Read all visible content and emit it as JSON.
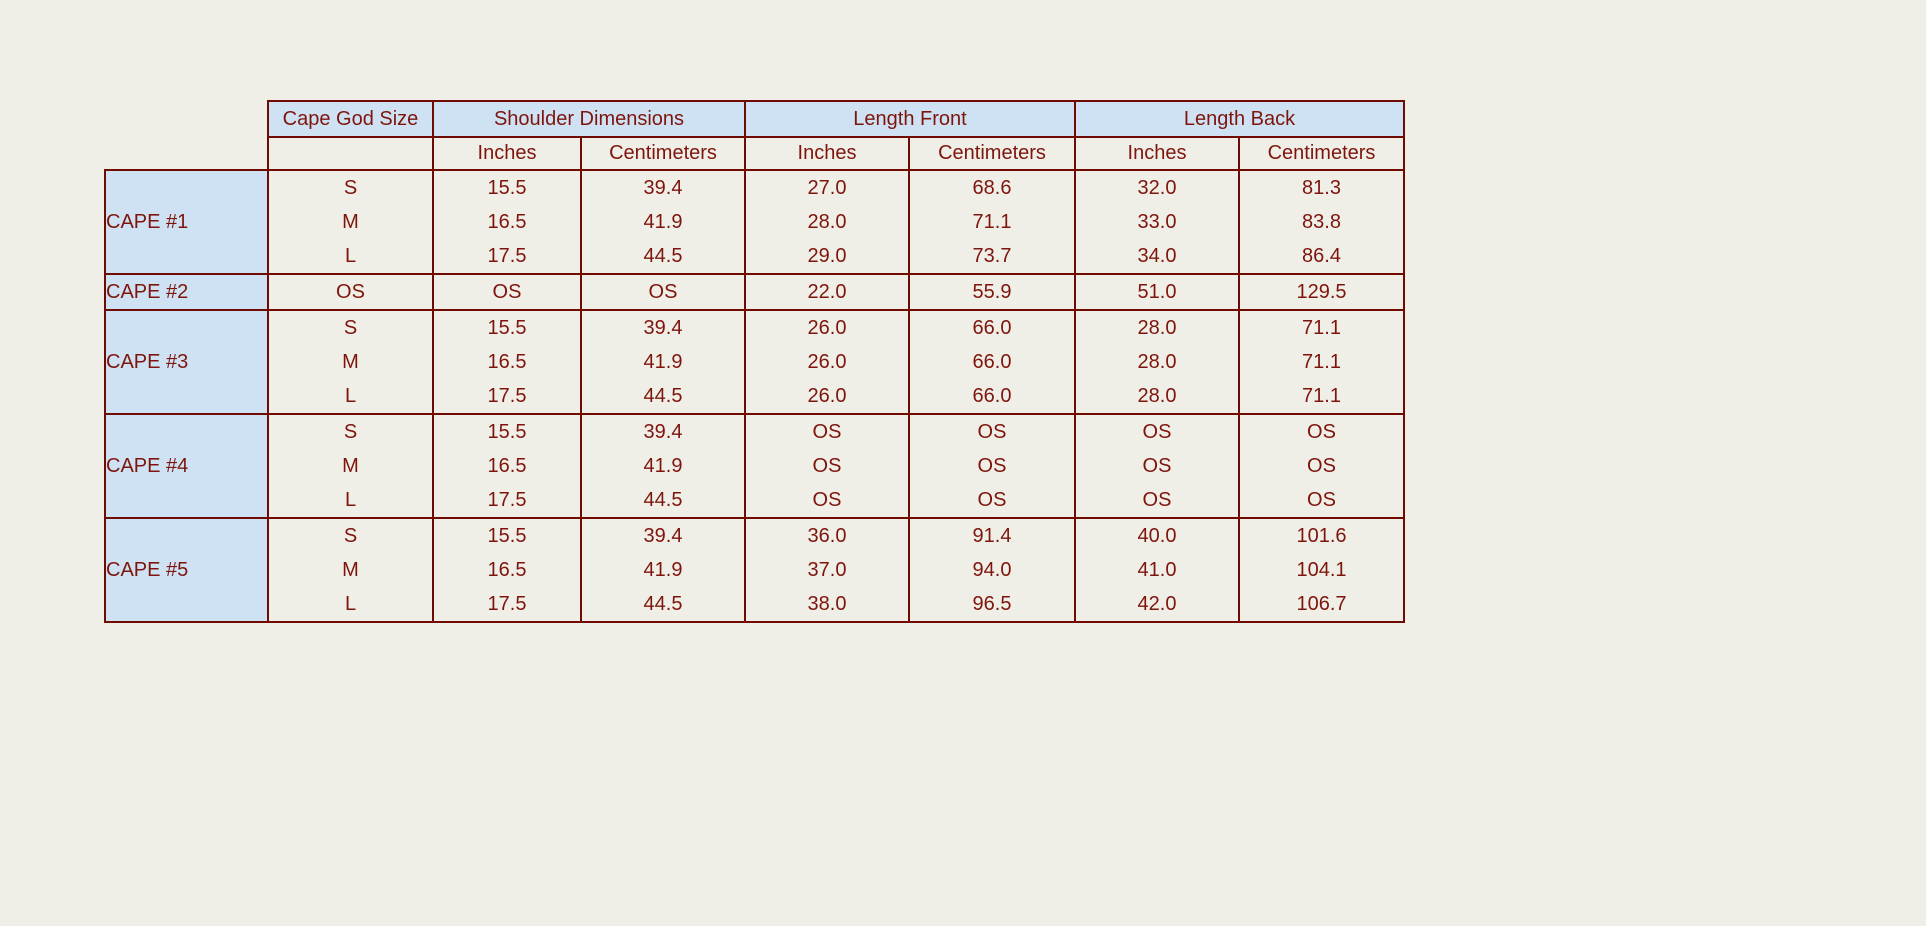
{
  "page": {
    "background_color": "#f0efe7"
  },
  "table": {
    "style": {
      "header_bg": "#cfe2f3",
      "cape_col_bg": "#cfe2f3",
      "border_color": "#700b04",
      "text_color": "#7e150d"
    },
    "header": {
      "size_col": "Cape God Size",
      "groups": [
        "Shoulder Dimensions",
        "Length Front",
        "Length Back"
      ],
      "units": [
        "Inches",
        "Centimeters",
        "Inches",
        "Centimeters",
        "Inches",
        "Centimeters"
      ]
    }
  },
  "chart_data": {
    "type": "table",
    "column_headers": {
      "row1": [
        "Cape God Size",
        "Shoulder Dimensions",
        "Length Front",
        "Length Back"
      ],
      "row2": [
        "Inches",
        "Centimeters",
        "Inches",
        "Centimeters",
        "Inches",
        "Centimeters"
      ]
    },
    "columns": [
      "Cape",
      "Cape God Size",
      "Shoulder Dimensions Inches",
      "Shoulder Dimensions Centimeters",
      "Length Front Inches",
      "Length Front Centimeters",
      "Length Back Inches",
      "Length Back Centimeters"
    ],
    "groups": [
      {
        "cape": "CAPE #1",
        "rows": [
          [
            "S",
            "15.5",
            "39.4",
            "27.0",
            "68.6",
            "32.0",
            "81.3"
          ],
          [
            "M",
            "16.5",
            "41.9",
            "28.0",
            "71.1",
            "33.0",
            "83.8"
          ],
          [
            "L",
            "17.5",
            "44.5",
            "29.0",
            "73.7",
            "34.0",
            "86.4"
          ]
        ]
      },
      {
        "cape": "CAPE #2",
        "rows": [
          [
            "OS",
            "OS",
            "OS",
            "22.0",
            "55.9",
            "51.0",
            "129.5"
          ]
        ]
      },
      {
        "cape": "CAPE #3",
        "rows": [
          [
            "S",
            "15.5",
            "39.4",
            "26.0",
            "66.0",
            "28.0",
            "71.1"
          ],
          [
            "M",
            "16.5",
            "41.9",
            "26.0",
            "66.0",
            "28.0",
            "71.1"
          ],
          [
            "L",
            "17.5",
            "44.5",
            "26.0",
            "66.0",
            "28.0",
            "71.1"
          ]
        ]
      },
      {
        "cape": "CAPE #4",
        "rows": [
          [
            "S",
            "15.5",
            "39.4",
            "OS",
            "OS",
            "OS",
            "OS"
          ],
          [
            "M",
            "16.5",
            "41.9",
            "OS",
            "OS",
            "OS",
            "OS"
          ],
          [
            "L",
            "17.5",
            "44.5",
            "OS",
            "OS",
            "OS",
            "OS"
          ]
        ]
      },
      {
        "cape": "CAPE #5",
        "rows": [
          [
            "S",
            "15.5",
            "39.4",
            "36.0",
            "91.4",
            "40.0",
            "101.6"
          ],
          [
            "M",
            "16.5",
            "41.9",
            "37.0",
            "94.0",
            "41.0",
            "104.1"
          ],
          [
            "L",
            "17.5",
            "44.5",
            "38.0",
            "96.5",
            "42.0",
            "106.7"
          ]
        ]
      }
    ]
  }
}
